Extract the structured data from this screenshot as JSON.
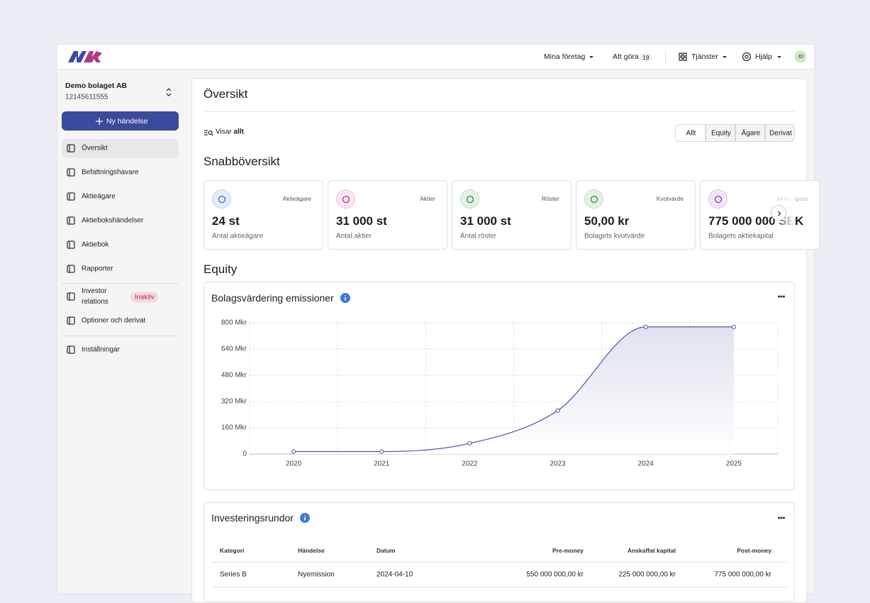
{
  "header": {
    "companies": "Mina företag",
    "todo": "Att göra",
    "todo_count": "19",
    "services": "Tjänster",
    "help": "Hjälp",
    "avatar": "JD"
  },
  "sidebar": {
    "company": "Demo bolaget AB",
    "org_number": "12145611555",
    "new_button": "Ny händelse",
    "menu": [
      "Översikt",
      "Befattningshavare",
      "Aktieägare",
      "Aktiebokshändelser",
      "Aktiebok",
      "Rapporter",
      "Investor relations",
      "Optioner och derivat",
      "Inställningar"
    ],
    "badge": "Inaktiv"
  },
  "page": {
    "title": "Översikt",
    "filter_label": "Visar",
    "filter_value": "allt",
    "tabs": [
      "Allt",
      "Equity",
      "Ägare",
      "Derivat"
    ],
    "quick_title": "Snabböversikt",
    "cards": [
      {
        "label": "Aktieägare",
        "value": "24 st",
        "caption": "Antal aktieägare"
      },
      {
        "label": "Aktier",
        "value": "31 000 st",
        "caption": "Antal aktier"
      },
      {
        "label": "Röster",
        "value": "31 000 st",
        "caption": "Antal röster"
      },
      {
        "label": "Kvotvärde",
        "value": "50,00 kr",
        "caption": "Bolagets kvotvärde"
      },
      {
        "label": "Aktiekapital",
        "value": "775 000 000 SEK",
        "caption": "Bolagets aktiekapital"
      }
    ],
    "equity_title": "Equity"
  },
  "chart_data": {
    "type": "line",
    "title": "Bolagsvärdering emissioner",
    "categories": [
      "2020",
      "2021",
      "2022",
      "2023",
      "2024",
      "2025"
    ],
    "series": [
      {
        "name": "Bolagsvärdering",
        "color": "#4a58b0",
        "values": [
          15,
          15,
          65,
          265,
          775,
          775
        ]
      }
    ],
    "ylim": [
      0,
      800
    ],
    "yticks": [
      0,
      {
        "value": 160,
        "label": "160 Mkr"
      },
      {
        "value": 320,
        "label": "320 Mkr"
      },
      {
        "value": 480,
        "label": "480 Mkr"
      },
      {
        "value": 640,
        "label": "640 Mkr"
      },
      {
        "value": 800,
        "label": "800 Mkr"
      }
    ],
    "grid": true
  },
  "table": {
    "title": "Investeringsrundor",
    "columns": [
      "Kategori",
      "Händelse",
      "Datum",
      "Pre-money",
      "Anskaffat kapital",
      "Post-money"
    ],
    "rows": [
      [
        "Series B",
        "Nyemission",
        "2024-04-10",
        "550 000 000,00 kr",
        "225 000 000,00 kr",
        "775 000 000,00 kr"
      ]
    ]
  }
}
